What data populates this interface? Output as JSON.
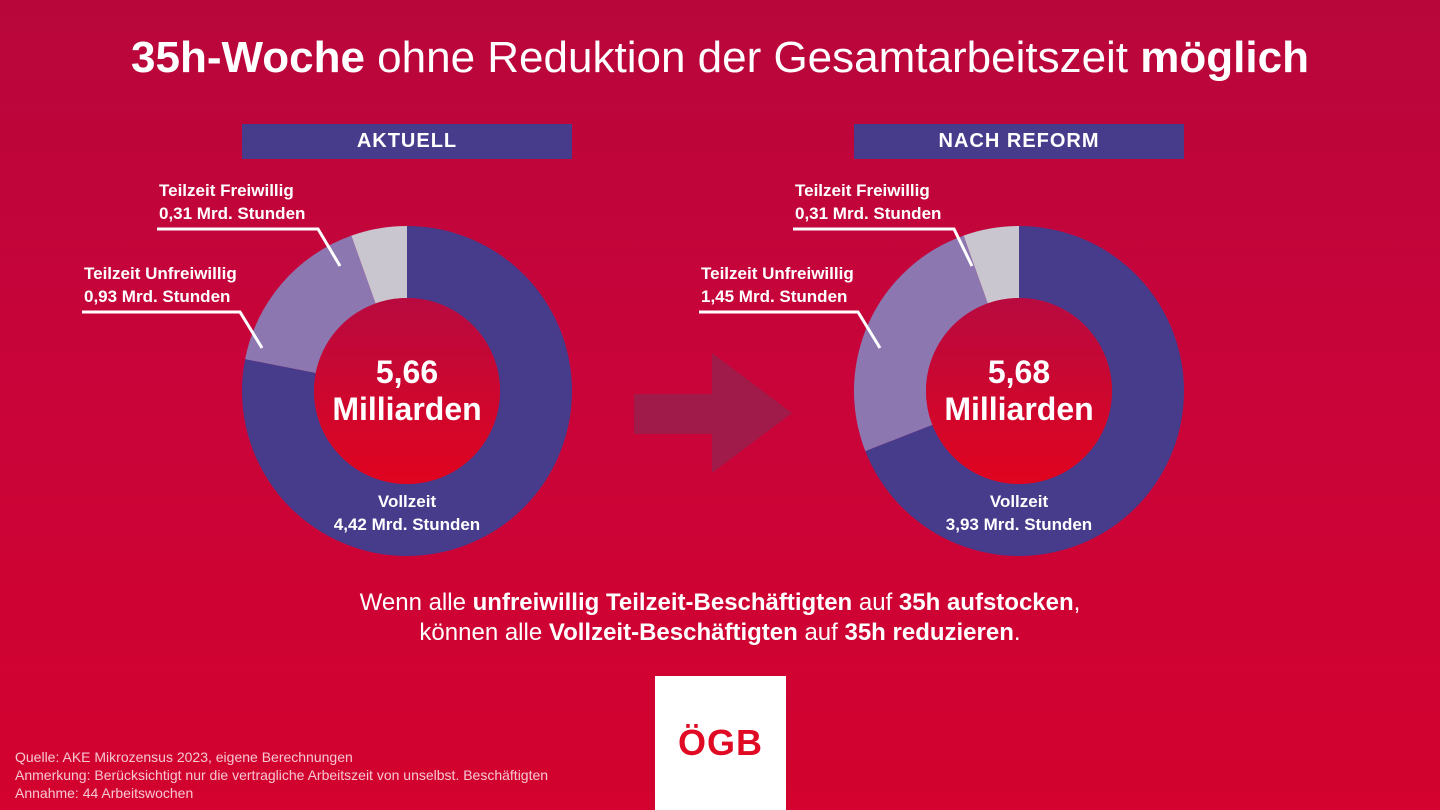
{
  "title": {
    "part1_bold": "35h-Woche",
    "part2": " ohne Reduktion der Gesamtarbeitszeit ",
    "part3_bold": "möglich"
  },
  "colors": {
    "vollzeit": "#473b8c",
    "teilzeit_unfreiwillig": "#8c77b0",
    "teilzeit_freiwillig": "#c9c6cf",
    "arrow": "#a01b4a"
  },
  "chart_data": [
    {
      "type": "pie",
      "title": "AKTUELL",
      "center_value": "5,66",
      "center_unit": "Milliarden",
      "slices": [
        {
          "name": "Vollzeit",
          "value": 4.42,
          "label_line1": "Vollzeit",
          "label_line2": "4,42 Mrd. Stunden"
        },
        {
          "name": "Teilzeit Unfreiwillig",
          "value": 0.93,
          "label_line1": "Teilzeit Unfreiwillig",
          "label_line2": "0,93 Mrd. Stunden"
        },
        {
          "name": "Teilzeit Freiwillig",
          "value": 0.31,
          "label_line1": "Teilzeit Freiwillig",
          "label_line2": "0,31 Mrd. Stunden"
        }
      ]
    },
    {
      "type": "pie",
      "title": "NACH REFORM",
      "center_value": "5,68",
      "center_unit": "Milliarden",
      "slices": [
        {
          "name": "Vollzeit",
          "value": 3.93,
          "label_line1": "Vollzeit",
          "label_line2": "3,93 Mrd. Stunden"
        },
        {
          "name": "Teilzeit Unfreiwillig",
          "value": 1.45,
          "label_line1": "Teilzeit Unfreiwillig",
          "label_line2": "1,45 Mrd. Stunden"
        },
        {
          "name": "Teilzeit Freiwillig",
          "value": 0.31,
          "label_line1": "Teilzeit Freiwillig",
          "label_line2": "0,31 Mrd. Stunden"
        }
      ]
    }
  ],
  "bottom_text": {
    "line1": [
      {
        "t": "Wenn alle ",
        "b": false
      },
      {
        "t": "unfreiwillig Teilzeit-Beschäftigten",
        "b": true
      },
      {
        "t": " auf ",
        "b": false
      },
      {
        "t": "35h aufstocken",
        "b": true
      },
      {
        "t": ",",
        "b": false
      }
    ],
    "line2": [
      {
        "t": "können alle ",
        "b": false
      },
      {
        "t": "Vollzeit-Beschäftigten",
        "b": true
      },
      {
        "t": " auf ",
        "b": false
      },
      {
        "t": "35h reduzieren",
        "b": true
      },
      {
        "t": ".",
        "b": false
      }
    ]
  },
  "footnotes": {
    "source": "Quelle: AKE Mikrozensus 2023, eigene Berechnungen",
    "note": "Anmerkung: Berücksichtigt nur die vertragliche Arbeitszeit von unselbst. Beschäftigten",
    "assumption": "Annahme: 44 Arbeitswochen"
  },
  "logo": {
    "text": "ÖGB",
    "icon": "oegb-logo"
  }
}
